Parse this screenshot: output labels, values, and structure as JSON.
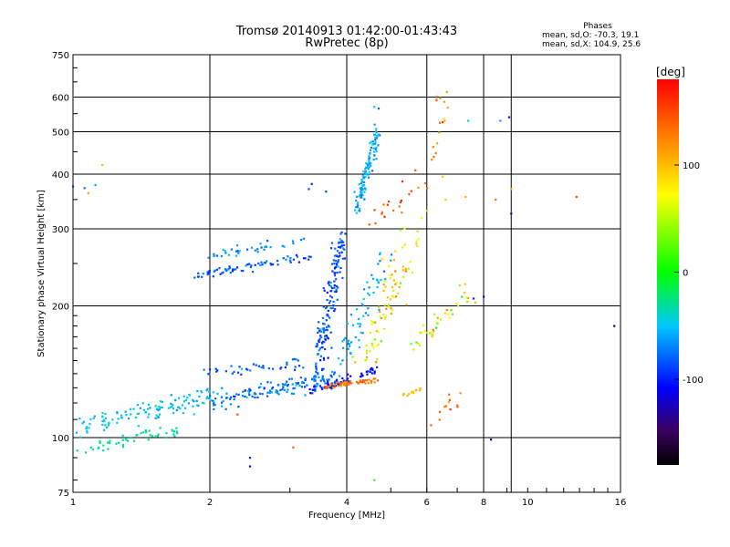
{
  "header": {
    "title_line1": "Tromsø 20140913 01:42:00-01:43:43",
    "title_line2": "RwPretec (8p)",
    "stats_title": "Phases",
    "stats_line1": "mean, sd,O: -70.3, 19.1",
    "stats_line2": "mean, sd,X: 104.9, 25.6"
  },
  "colorbar": {
    "label": "[deg]",
    "ticks": [
      {
        "label": "100",
        "value": 100
      },
      {
        "label": "0",
        "value": 0
      },
      {
        "label": "-100",
        "value": -100
      }
    ],
    "range": [
      -180,
      180
    ]
  },
  "chart_data": {
    "type": "scatter",
    "title": "Tromsø 20140913 01:42:00-01:43:43",
    "subtitle": "RwPretec (8p)",
    "xlabel": "Frequency [MHz]",
    "ylabel": "Stationary phase Virtual Height [km]",
    "x_scale": "log",
    "y_scale": "log",
    "xlim": [
      1,
      16
    ],
    "ylim": [
      75,
      750
    ],
    "x_ticks": [
      {
        "label": "1",
        "value": 1
      },
      {
        "label": "2",
        "value": 2
      },
      {
        "label": "4",
        "value": 4
      },
      {
        "label": "6",
        "value": 6
      },
      {
        "label": "8",
        "value": 8
      },
      {
        "label": "10",
        "value": 10
      },
      {
        "label": "16",
        "value": 16
      }
    ],
    "y_ticks": [
      {
        "label": "75",
        "value": 75
      },
      {
        "label": "100",
        "value": 100
      },
      {
        "label": "200",
        "value": 200
      },
      {
        "label": "300",
        "value": 300
      },
      {
        "label": "400",
        "value": 400
      },
      {
        "label": "500",
        "value": 500
      },
      {
        "label": "600",
        "value": 600
      },
      {
        "label": "750",
        "value": 750
      }
    ],
    "x_gridlines": [
      2,
      4,
      6,
      8,
      9.2
    ],
    "y_gridlines": [
      100,
      200,
      300,
      400,
      500,
      600
    ],
    "color_quantity": "phase [deg]",
    "color_range": [
      -180,
      180
    ],
    "clusters": [
      {
        "from": [
          1.0,
          105
        ],
        "to": [
          2.1,
          125
        ],
        "n": 130,
        "spread": [
          0.03,
          0.045
        ],
        "phase": -50,
        "phase_sd": 15
      },
      {
        "from": [
          1.05,
          94
        ],
        "to": [
          1.7,
          104
        ],
        "n": 50,
        "spread": [
          0.025,
          0.03
        ],
        "phase": -30,
        "phase_sd": 10
      },
      {
        "from": [
          2.0,
          120
        ],
        "to": [
          3.8,
          138
        ],
        "n": 140,
        "spread": [
          0.03,
          0.04
        ],
        "phase": -75,
        "phase_sd": 20
      },
      {
        "from": [
          3.3,
          128
        ],
        "to": [
          4.6,
          142
        ],
        "n": 60,
        "spread": [
          0.02,
          0.02
        ],
        "phase": -105,
        "phase_sd": 10
      },
      {
        "from": [
          3.6,
          131
        ],
        "to": [
          4.7,
          136
        ],
        "n": 55,
        "spread": [
          0.012,
          0.01
        ],
        "phase": 130,
        "phase_sd": 12
      },
      {
        "from": [
          3.45,
          140
        ],
        "to": [
          3.9,
          290
        ],
        "n": 160,
        "spread": [
          0.03,
          0.05
        ],
        "phase": -85,
        "phase_sd": 20
      },
      {
        "from": [
          3.9,
          150
        ],
        "to": [
          4.9,
          260
        ],
        "n": 60,
        "spread": [
          0.04,
          0.06
        ],
        "phase": -60,
        "phase_sd": 20
      },
      {
        "from": [
          4.2,
          330
        ],
        "to": [
          4.7,
          510
        ],
        "n": 110,
        "spread": [
          0.02,
          0.04
        ],
        "phase": -60,
        "phase_sd": 20
      },
      {
        "from": [
          1.85,
          235
        ],
        "to": [
          3.3,
          258
        ],
        "n": 70,
        "spread": [
          0.02,
          0.02
        ],
        "phase": -85,
        "phase_sd": 15
      },
      {
        "from": [
          2.0,
          262
        ],
        "to": [
          3.2,
          282
        ],
        "n": 35,
        "spread": [
          0.02,
          0.02
        ],
        "phase": -70,
        "phase_sd": 15
      },
      {
        "from": [
          1.95,
          140
        ],
        "to": [
          3.2,
          148
        ],
        "n": 40,
        "spread": [
          0.03,
          0.03
        ],
        "phase": -80,
        "phase_sd": 20
      },
      {
        "from": [
          4.4,
          150
        ],
        "to": [
          5.7,
          300
        ],
        "n": 90,
        "spread": [
          0.06,
          0.08
        ],
        "phase": 80,
        "phase_sd": 45
      },
      {
        "from": [
          5.3,
          125
        ],
        "to": [
          5.9,
          130
        ],
        "n": 12,
        "spread": [
          0.01,
          0.01
        ],
        "phase": 100,
        "phase_sd": 10
      },
      {
        "from": [
          5.7,
          165
        ],
        "to": [
          7.4,
          215
        ],
        "n": 40,
        "spread": [
          0.04,
          0.05
        ],
        "phase": 60,
        "phase_sd": 50
      },
      {
        "from": [
          6.2,
          420
        ],
        "to": [
          6.6,
          620
        ],
        "n": 14,
        "spread": [
          0.02,
          0.05
        ],
        "phase": 120,
        "phase_sd": 40
      },
      {
        "from": [
          4.6,
          310
        ],
        "to": [
          6.0,
          390
        ],
        "n": 20,
        "spread": [
          0.05,
          0.05
        ],
        "phase": 140,
        "phase_sd": 30
      },
      {
        "from": [
          6.0,
          110
        ],
        "to": [
          7.2,
          125
        ],
        "n": 12,
        "spread": [
          0.04,
          0.04
        ],
        "phase": 130,
        "phase_sd": 30
      }
    ],
    "points": [
      {
        "x": 1.0,
        "y": 375,
        "phase": -80
      },
      {
        "x": 1.06,
        "y": 372,
        "phase": -75
      },
      {
        "x": 1.12,
        "y": 378,
        "phase": -60
      },
      {
        "x": 1.08,
        "y": 362,
        "phase": 110
      },
      {
        "x": 1.16,
        "y": 420,
        "phase": 100
      },
      {
        "x": 2.45,
        "y": 90,
        "phase": -100
      },
      {
        "x": 2.45,
        "y": 86,
        "phase": -130
      },
      {
        "x": 2.3,
        "y": 113,
        "phase": 150
      },
      {
        "x": 3.05,
        "y": 95,
        "phase": 140
      },
      {
        "x": 3.3,
        "y": 370,
        "phase": -90
      },
      {
        "x": 3.35,
        "y": 380,
        "phase": -100
      },
      {
        "x": 3.6,
        "y": 365,
        "phase": -90
      },
      {
        "x": 4.6,
        "y": 80,
        "phase": 10
      },
      {
        "x": 4.7,
        "y": 565,
        "phase": -80
      },
      {
        "x": 4.6,
        "y": 570,
        "phase": -40
      },
      {
        "x": 5.3,
        "y": 385,
        "phase": 160
      },
      {
        "x": 6.3,
        "y": 590,
        "phase": 150
      },
      {
        "x": 6.3,
        "y": 600,
        "phase": 160
      },
      {
        "x": 7.4,
        "y": 530,
        "phase": -40
      },
      {
        "x": 8.7,
        "y": 530,
        "phase": -60
      },
      {
        "x": 9.1,
        "y": 540,
        "phase": -120
      },
      {
        "x": 9.2,
        "y": 370,
        "phase": 100
      },
      {
        "x": 9.2,
        "y": 325,
        "phase": -120
      },
      {
        "x": 8.3,
        "y": 99,
        "phase": -120
      },
      {
        "x": 12.8,
        "y": 355,
        "phase": 150
      },
      {
        "x": 15.5,
        "y": 180,
        "phase": -160
      },
      {
        "x": 8.0,
        "y": 210,
        "phase": -110
      },
      {
        "x": 7.6,
        "y": 208,
        "phase": -100
      },
      {
        "x": 6.6,
        "y": 350,
        "phase": 90
      },
      {
        "x": 6.5,
        "y": 395,
        "phase": 95
      },
      {
        "x": 8.5,
        "y": 350,
        "phase": 130
      },
      {
        "x": 7.3,
        "y": 355,
        "phase": 100
      }
    ]
  }
}
